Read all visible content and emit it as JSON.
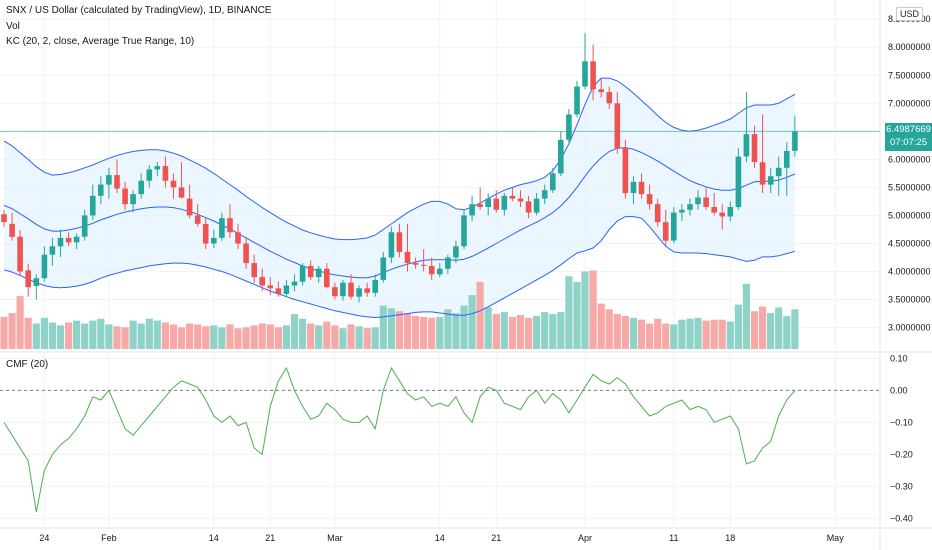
{
  "legend": {
    "symbol_line": "SNX / US Dollar (calculated by TradingView), 1D, BINANCE",
    "vol_line": "Vol",
    "kc_line": "KC (20, 2, close, Average True Range, 10)",
    "cmf_line": "CMF (20)"
  },
  "currency_badge": "USD",
  "last_price": {
    "value": "6.4987669",
    "countdown": "07:07:25",
    "price": 6.4988
  },
  "colors": {
    "up": "#26a69a",
    "down": "#ef5350",
    "up_volume": "#8fd3c8",
    "down_volume": "#f7a9a7",
    "keltner": "#2962ff",
    "keltner_fill": "#e3f2fd",
    "cmf": "#4caf50",
    "last_price_line": "#26a69a"
  },
  "chart_data": [
    {
      "type": "candlestick",
      "panel": "price",
      "y_axis_ticks": [
        "8.5000000",
        "8.0000000",
        "7.5000000",
        "7.0000000",
        "6.5000000",
        "6.0000000",
        "5.5000000",
        "5.0000000",
        "4.5000000",
        "4.0000000",
        "3.5000000",
        "3.0000000"
      ],
      "ylim": [
        2.6,
        8.7
      ],
      "x_axis_ticks": [
        "24",
        "Feb",
        "14",
        "21",
        "Mar",
        "14",
        "21",
        "Apr",
        "11",
        "18",
        "May"
      ],
      "candles": [
        {
          "o": 5.02,
          "h": 5.1,
          "l": 4.8,
          "c": 4.88
        },
        {
          "o": 4.85,
          "h": 5.05,
          "l": 4.55,
          "c": 4.62
        },
        {
          "o": 4.62,
          "h": 4.74,
          "l": 3.92,
          "c": 4.0
        },
        {
          "o": 4.02,
          "h": 4.14,
          "l": 3.55,
          "c": 3.72
        },
        {
          "o": 3.74,
          "h": 3.95,
          "l": 3.5,
          "c": 3.88
        },
        {
          "o": 3.88,
          "h": 4.45,
          "l": 3.82,
          "c": 4.3
        },
        {
          "o": 4.3,
          "h": 4.6,
          "l": 4.1,
          "c": 4.45
        },
        {
          "o": 4.45,
          "h": 4.75,
          "l": 4.26,
          "c": 4.6
        },
        {
          "o": 4.6,
          "h": 4.7,
          "l": 4.45,
          "c": 4.52
        },
        {
          "o": 4.52,
          "h": 4.68,
          "l": 4.4,
          "c": 4.62
        },
        {
          "o": 4.62,
          "h": 5.1,
          "l": 4.55,
          "c": 5.0
        },
        {
          "o": 5.0,
          "h": 5.55,
          "l": 4.92,
          "c": 5.35
        },
        {
          "o": 5.35,
          "h": 5.7,
          "l": 5.2,
          "c": 5.55
        },
        {
          "o": 5.55,
          "h": 5.85,
          "l": 5.3,
          "c": 5.72
        },
        {
          "o": 5.72,
          "h": 6.0,
          "l": 5.4,
          "c": 5.48
        },
        {
          "o": 5.48,
          "h": 5.6,
          "l": 5.1,
          "c": 5.2
        },
        {
          "o": 5.2,
          "h": 5.45,
          "l": 5.05,
          "c": 5.38
        },
        {
          "o": 5.38,
          "h": 5.75,
          "l": 5.3,
          "c": 5.62
        },
        {
          "o": 5.62,
          "h": 5.9,
          "l": 5.5,
          "c": 5.82
        },
        {
          "o": 5.82,
          "h": 5.95,
          "l": 5.7,
          "c": 5.88
        },
        {
          "o": 5.88,
          "h": 6.05,
          "l": 5.5,
          "c": 5.62
        },
        {
          "o": 5.62,
          "h": 5.75,
          "l": 5.3,
          "c": 5.5
        },
        {
          "o": 5.5,
          "h": 5.95,
          "l": 5.3,
          "c": 5.32
        },
        {
          "o": 5.3,
          "h": 5.55,
          "l": 4.95,
          "c": 5.0
        },
        {
          "o": 5.0,
          "h": 5.2,
          "l": 4.8,
          "c": 4.85
        },
        {
          "o": 4.85,
          "h": 4.95,
          "l": 4.4,
          "c": 4.5
        },
        {
          "o": 4.5,
          "h": 4.75,
          "l": 4.42,
          "c": 4.6
        },
        {
          "o": 4.6,
          "h": 5.05,
          "l": 4.55,
          "c": 4.95
        },
        {
          "o": 4.95,
          "h": 5.2,
          "l": 4.6,
          "c": 4.7
        },
        {
          "o": 4.7,
          "h": 4.85,
          "l": 4.4,
          "c": 4.5
        },
        {
          "o": 4.5,
          "h": 4.62,
          "l": 4.05,
          "c": 4.15
        },
        {
          "o": 4.15,
          "h": 4.3,
          "l": 3.8,
          "c": 3.9
        },
        {
          "o": 3.9,
          "h": 4.05,
          "l": 3.65,
          "c": 3.75
        },
        {
          "o": 3.75,
          "h": 3.9,
          "l": 3.58,
          "c": 3.7
        },
        {
          "o": 3.7,
          "h": 3.82,
          "l": 3.55,
          "c": 3.6
        },
        {
          "o": 3.6,
          "h": 3.85,
          "l": 3.55,
          "c": 3.75
        },
        {
          "o": 3.75,
          "h": 3.95,
          "l": 3.65,
          "c": 3.82
        },
        {
          "o": 3.82,
          "h": 4.15,
          "l": 3.75,
          "c": 4.1
        },
        {
          "o": 4.1,
          "h": 4.2,
          "l": 3.85,
          "c": 3.9
        },
        {
          "o": 3.9,
          "h": 4.1,
          "l": 3.8,
          "c": 4.05
        },
        {
          "o": 4.05,
          "h": 4.15,
          "l": 3.7,
          "c": 3.72
        },
        {
          "o": 3.72,
          "h": 3.8,
          "l": 3.5,
          "c": 3.56
        },
        {
          "o": 3.56,
          "h": 3.85,
          "l": 3.48,
          "c": 3.8
        },
        {
          "o": 3.8,
          "h": 3.95,
          "l": 3.5,
          "c": 3.55
        },
        {
          "o": 3.55,
          "h": 3.75,
          "l": 3.45,
          "c": 3.7
        },
        {
          "o": 3.7,
          "h": 3.8,
          "l": 3.55,
          "c": 3.62
        },
        {
          "o": 3.62,
          "h": 3.95,
          "l": 3.55,
          "c": 3.85
        },
        {
          "o": 3.85,
          "h": 4.35,
          "l": 3.8,
          "c": 4.25
        },
        {
          "o": 4.25,
          "h": 4.8,
          "l": 4.15,
          "c": 4.7
        },
        {
          "o": 4.7,
          "h": 4.85,
          "l": 4.25,
          "c": 4.35
        },
        {
          "o": 4.35,
          "h": 4.85,
          "l": 4.0,
          "c": 4.15
        },
        {
          "o": 4.15,
          "h": 4.25,
          "l": 4.05,
          "c": 4.12
        },
        {
          "o": 4.12,
          "h": 4.4,
          "l": 4.0,
          "c": 4.1
        },
        {
          "o": 4.1,
          "h": 4.25,
          "l": 3.85,
          "c": 3.95
        },
        {
          "o": 3.95,
          "h": 4.15,
          "l": 3.9,
          "c": 4.05
        },
        {
          "o": 4.05,
          "h": 4.3,
          "l": 3.95,
          "c": 4.25
        },
        {
          "o": 4.25,
          "h": 4.55,
          "l": 4.15,
          "c": 4.45
        },
        {
          "o": 4.45,
          "h": 5.1,
          "l": 4.4,
          "c": 5.0
        },
        {
          "o": 5.0,
          "h": 5.35,
          "l": 4.9,
          "c": 5.2
        },
        {
          "o": 5.2,
          "h": 5.5,
          "l": 5.1,
          "c": 5.15
        },
        {
          "o": 5.15,
          "h": 5.4,
          "l": 5.0,
          "c": 5.3
        },
        {
          "o": 5.3,
          "h": 5.45,
          "l": 5.05,
          "c": 5.1
        },
        {
          "o": 5.1,
          "h": 5.4,
          "l": 5.0,
          "c": 5.35
        },
        {
          "o": 5.35,
          "h": 5.5,
          "l": 5.25,
          "c": 5.3
        },
        {
          "o": 5.3,
          "h": 5.45,
          "l": 5.15,
          "c": 5.25
        },
        {
          "o": 5.25,
          "h": 5.35,
          "l": 4.95,
          "c": 5.05
        },
        {
          "o": 5.05,
          "h": 5.4,
          "l": 5.0,
          "c": 5.3
        },
        {
          "o": 5.3,
          "h": 5.55,
          "l": 5.2,
          "c": 5.45
        },
        {
          "o": 5.45,
          "h": 5.85,
          "l": 5.4,
          "c": 5.75
        },
        {
          "o": 5.75,
          "h": 6.5,
          "l": 5.7,
          "c": 6.35
        },
        {
          "o": 6.35,
          "h": 6.9,
          "l": 6.3,
          "c": 6.8
        },
        {
          "o": 6.8,
          "h": 7.4,
          "l": 6.75,
          "c": 7.3
        },
        {
          "o": 7.3,
          "h": 8.25,
          "l": 7.25,
          "c": 7.75
        },
        {
          "o": 7.75,
          "h": 8.05,
          "l": 7.05,
          "c": 7.25
        },
        {
          "o": 7.25,
          "h": 7.45,
          "l": 7.1,
          "c": 7.2
        },
        {
          "o": 7.2,
          "h": 7.3,
          "l": 6.9,
          "c": 7.0
        },
        {
          "o": 7.0,
          "h": 7.2,
          "l": 6.1,
          "c": 6.2
        },
        {
          "o": 6.2,
          "h": 6.35,
          "l": 5.3,
          "c": 5.4
        },
        {
          "o": 5.4,
          "h": 5.7,
          "l": 5.2,
          "c": 5.6
        },
        {
          "o": 5.6,
          "h": 5.75,
          "l": 5.3,
          "c": 5.38
        },
        {
          "o": 5.38,
          "h": 5.55,
          "l": 5.1,
          "c": 5.2
        },
        {
          "o": 5.2,
          "h": 5.3,
          "l": 4.8,
          "c": 4.88
        },
        {
          "o": 4.88,
          "h": 5.1,
          "l": 4.45,
          "c": 4.55
        },
        {
          "o": 4.55,
          "h": 5.15,
          "l": 4.5,
          "c": 5.05
        },
        {
          "o": 5.05,
          "h": 5.2,
          "l": 4.9,
          "c": 5.1
        },
        {
          "o": 5.1,
          "h": 5.3,
          "l": 5.0,
          "c": 5.2
        },
        {
          "o": 5.2,
          "h": 5.45,
          "l": 5.1,
          "c": 5.32
        },
        {
          "o": 5.32,
          "h": 5.5,
          "l": 5.1,
          "c": 5.15
        },
        {
          "o": 5.15,
          "h": 5.4,
          "l": 5.0,
          "c": 5.05
        },
        {
          "o": 5.05,
          "h": 5.2,
          "l": 4.75,
          "c": 4.98
        },
        {
          "o": 4.98,
          "h": 5.25,
          "l": 4.9,
          "c": 5.15
        },
        {
          "o": 5.15,
          "h": 6.2,
          "l": 5.1,
          "c": 6.05
        },
        {
          "o": 6.05,
          "h": 7.2,
          "l": 5.95,
          "c": 6.45
        },
        {
          "o": 6.45,
          "h": 6.6,
          "l": 5.85,
          "c": 5.95
        },
        {
          "o": 5.95,
          "h": 6.8,
          "l": 5.4,
          "c": 5.55
        },
        {
          "o": 5.55,
          "h": 5.85,
          "l": 5.4,
          "c": 5.7
        },
        {
          "o": 5.7,
          "h": 6.05,
          "l": 5.35,
          "c": 5.85
        },
        {
          "o": 5.85,
          "h": 6.3,
          "l": 5.35,
          "c": 6.15
        },
        {
          "o": 6.15,
          "h": 6.78,
          "l": 6.05,
          "c": 6.5
        }
      ],
      "keltner_upper": [
        6.33,
        6.24,
        6.12,
        6.0,
        5.87,
        5.77,
        5.72,
        5.73,
        5.76,
        5.8,
        5.85,
        5.9,
        5.96,
        6.02,
        6.07,
        6.11,
        6.14,
        6.16,
        6.17,
        6.17,
        6.15,
        6.11,
        6.06,
        5.99,
        5.92,
        5.84,
        5.75,
        5.65,
        5.55,
        5.45,
        5.34,
        5.24,
        5.14,
        5.05,
        4.96,
        4.88,
        4.81,
        4.74,
        4.69,
        4.65,
        4.61,
        4.58,
        4.57,
        4.57,
        4.58,
        4.6,
        4.65,
        4.75,
        4.85,
        4.95,
        5.05,
        5.13,
        5.2,
        5.25,
        5.25,
        5.2,
        5.12,
        5.1,
        5.15,
        5.22,
        5.3,
        5.38,
        5.45,
        5.5,
        5.55,
        5.58,
        5.62,
        5.68,
        5.8,
        6.0,
        6.28,
        6.62,
        6.98,
        7.3,
        7.45,
        7.45,
        7.4,
        7.3,
        7.18,
        7.05,
        6.92,
        6.78,
        6.66,
        6.57,
        6.52,
        6.5,
        6.52,
        6.56,
        6.61,
        6.66,
        6.72,
        6.82,
        6.92,
        6.97,
        6.97,
        6.97,
        7.0,
        7.08,
        7.16
      ],
      "keltner_middle": [
        5.18,
        5.12,
        5.03,
        4.94,
        4.84,
        4.76,
        4.72,
        4.72,
        4.74,
        4.77,
        4.81,
        4.86,
        4.92,
        4.97,
        5.02,
        5.06,
        5.09,
        5.12,
        5.14,
        5.15,
        5.15,
        5.14,
        5.11,
        5.07,
        5.02,
        4.96,
        4.9,
        4.83,
        4.76,
        4.68,
        4.6,
        4.52,
        4.44,
        4.36,
        4.29,
        4.22,
        4.16,
        4.1,
        4.05,
        4.01,
        3.97,
        3.94,
        3.92,
        3.9,
        3.89,
        3.89,
        3.92,
        3.98,
        4.04,
        4.09,
        4.13,
        4.17,
        4.2,
        4.21,
        4.21,
        4.21,
        4.2,
        4.22,
        4.27,
        4.34,
        4.42,
        4.5,
        4.58,
        4.66,
        4.74,
        4.81,
        4.88,
        4.96,
        5.05,
        5.17,
        5.32,
        5.5,
        5.7,
        5.88,
        6.03,
        6.14,
        6.2,
        6.21,
        6.18,
        6.12,
        6.05,
        5.97,
        5.88,
        5.79,
        5.7,
        5.62,
        5.56,
        5.51,
        5.47,
        5.45,
        5.45,
        5.48,
        5.54,
        5.6,
        5.61,
        5.61,
        5.63,
        5.68,
        5.74
      ],
      "keltner_lower": [
        4.03,
        3.99,
        3.93,
        3.86,
        3.8,
        3.75,
        3.72,
        3.71,
        3.72,
        3.74,
        3.77,
        3.82,
        3.88,
        3.93,
        3.97,
        4.01,
        4.04,
        4.07,
        4.1,
        4.12,
        4.14,
        4.15,
        4.15,
        4.14,
        4.11,
        4.08,
        4.04,
        4.0,
        3.95,
        3.89,
        3.83,
        3.77,
        3.71,
        3.65,
        3.6,
        3.55,
        3.5,
        3.46,
        3.42,
        3.38,
        3.34,
        3.3,
        3.27,
        3.24,
        3.21,
        3.19,
        3.18,
        3.19,
        3.21,
        3.23,
        3.25,
        3.27,
        3.28,
        3.28,
        3.26,
        3.24,
        3.22,
        3.22,
        3.25,
        3.3,
        3.37,
        3.45,
        3.53,
        3.61,
        3.69,
        3.77,
        3.85,
        3.93,
        4.02,
        4.12,
        4.23,
        4.33,
        4.37,
        4.42,
        4.55,
        4.75,
        4.9,
        4.98,
        4.98,
        4.95,
        4.8,
        4.62,
        4.45,
        4.35,
        4.33,
        4.33,
        4.33,
        4.32,
        4.3,
        4.28,
        4.26,
        4.22,
        4.18,
        4.2,
        4.26,
        4.26,
        4.28,
        4.32,
        4.36
      ],
      "last_price": 6.4988
    },
    {
      "type": "bar",
      "panel": "volume",
      "values": [
        34,
        38,
        56,
        33,
        27,
        33,
        28,
        25,
        28,
        30,
        27,
        30,
        32,
        26,
        24,
        23,
        30,
        27,
        32,
        30,
        28,
        26,
        23,
        27,
        26,
        24,
        25,
        23,
        26,
        22,
        23,
        25,
        27,
        26,
        23,
        25,
        37,
        32,
        27,
        25,
        29,
        25,
        22,
        26,
        24,
        22,
        23,
        46,
        43,
        40,
        38,
        35,
        34,
        33,
        34,
        42,
        38,
        46,
        57,
        71,
        44,
        37,
        39,
        34,
        36,
        33,
        35,
        39,
        37,
        39,
        77,
        71,
        82,
        83,
        48,
        42,
        37,
        35,
        33,
        31,
        27,
        32,
        27,
        26,
        31,
        32,
        33,
        30,
        31,
        31,
        29,
        47,
        69,
        40,
        45,
        38,
        44,
        35,
        42
      ],
      "ylim": [
        0,
        110
      ]
    },
    {
      "type": "line",
      "panel": "cmf",
      "y_axis_ticks": [
        "0.10",
        "0.00",
        "−0.10",
        "−0.20",
        "−0.30",
        "−0.40"
      ],
      "ylim": [
        -0.43,
        0.12
      ],
      "zero_line": 0.0,
      "values": [
        -0.1,
        -0.14,
        -0.18,
        -0.22,
        -0.38,
        -0.25,
        -0.2,
        -0.17,
        -0.15,
        -0.12,
        -0.08,
        -0.02,
        -0.03,
        0.0,
        -0.06,
        -0.12,
        -0.14,
        -0.11,
        -0.08,
        -0.05,
        -0.02,
        0.01,
        0.03,
        0.02,
        0.01,
        -0.03,
        -0.08,
        -0.1,
        -0.08,
        -0.11,
        -0.1,
        -0.18,
        -0.2,
        -0.05,
        0.03,
        0.07,
        0.0,
        -0.05,
        -0.09,
        -0.08,
        -0.04,
        -0.06,
        -0.09,
        -0.1,
        -0.1,
        -0.08,
        -0.12,
        0.0,
        0.07,
        0.03,
        -0.01,
        -0.03,
        -0.02,
        -0.05,
        -0.04,
        -0.05,
        -0.02,
        -0.07,
        -0.1,
        -0.02,
        0.01,
        0.0,
        -0.04,
        -0.05,
        -0.06,
        -0.02,
        0.0,
        -0.04,
        -0.01,
        -0.03,
        -0.07,
        -0.03,
        0.01,
        0.05,
        0.03,
        0.02,
        0.04,
        0.02,
        -0.02,
        -0.05,
        -0.08,
        -0.07,
        -0.05,
        -0.04,
        -0.03,
        -0.06,
        -0.05,
        -0.06,
        -0.1,
        -0.09,
        -0.08,
        -0.12,
        -0.23,
        -0.22,
        -0.18,
        -0.16,
        -0.08,
        -0.03,
        0.0
      ]
    }
  ]
}
